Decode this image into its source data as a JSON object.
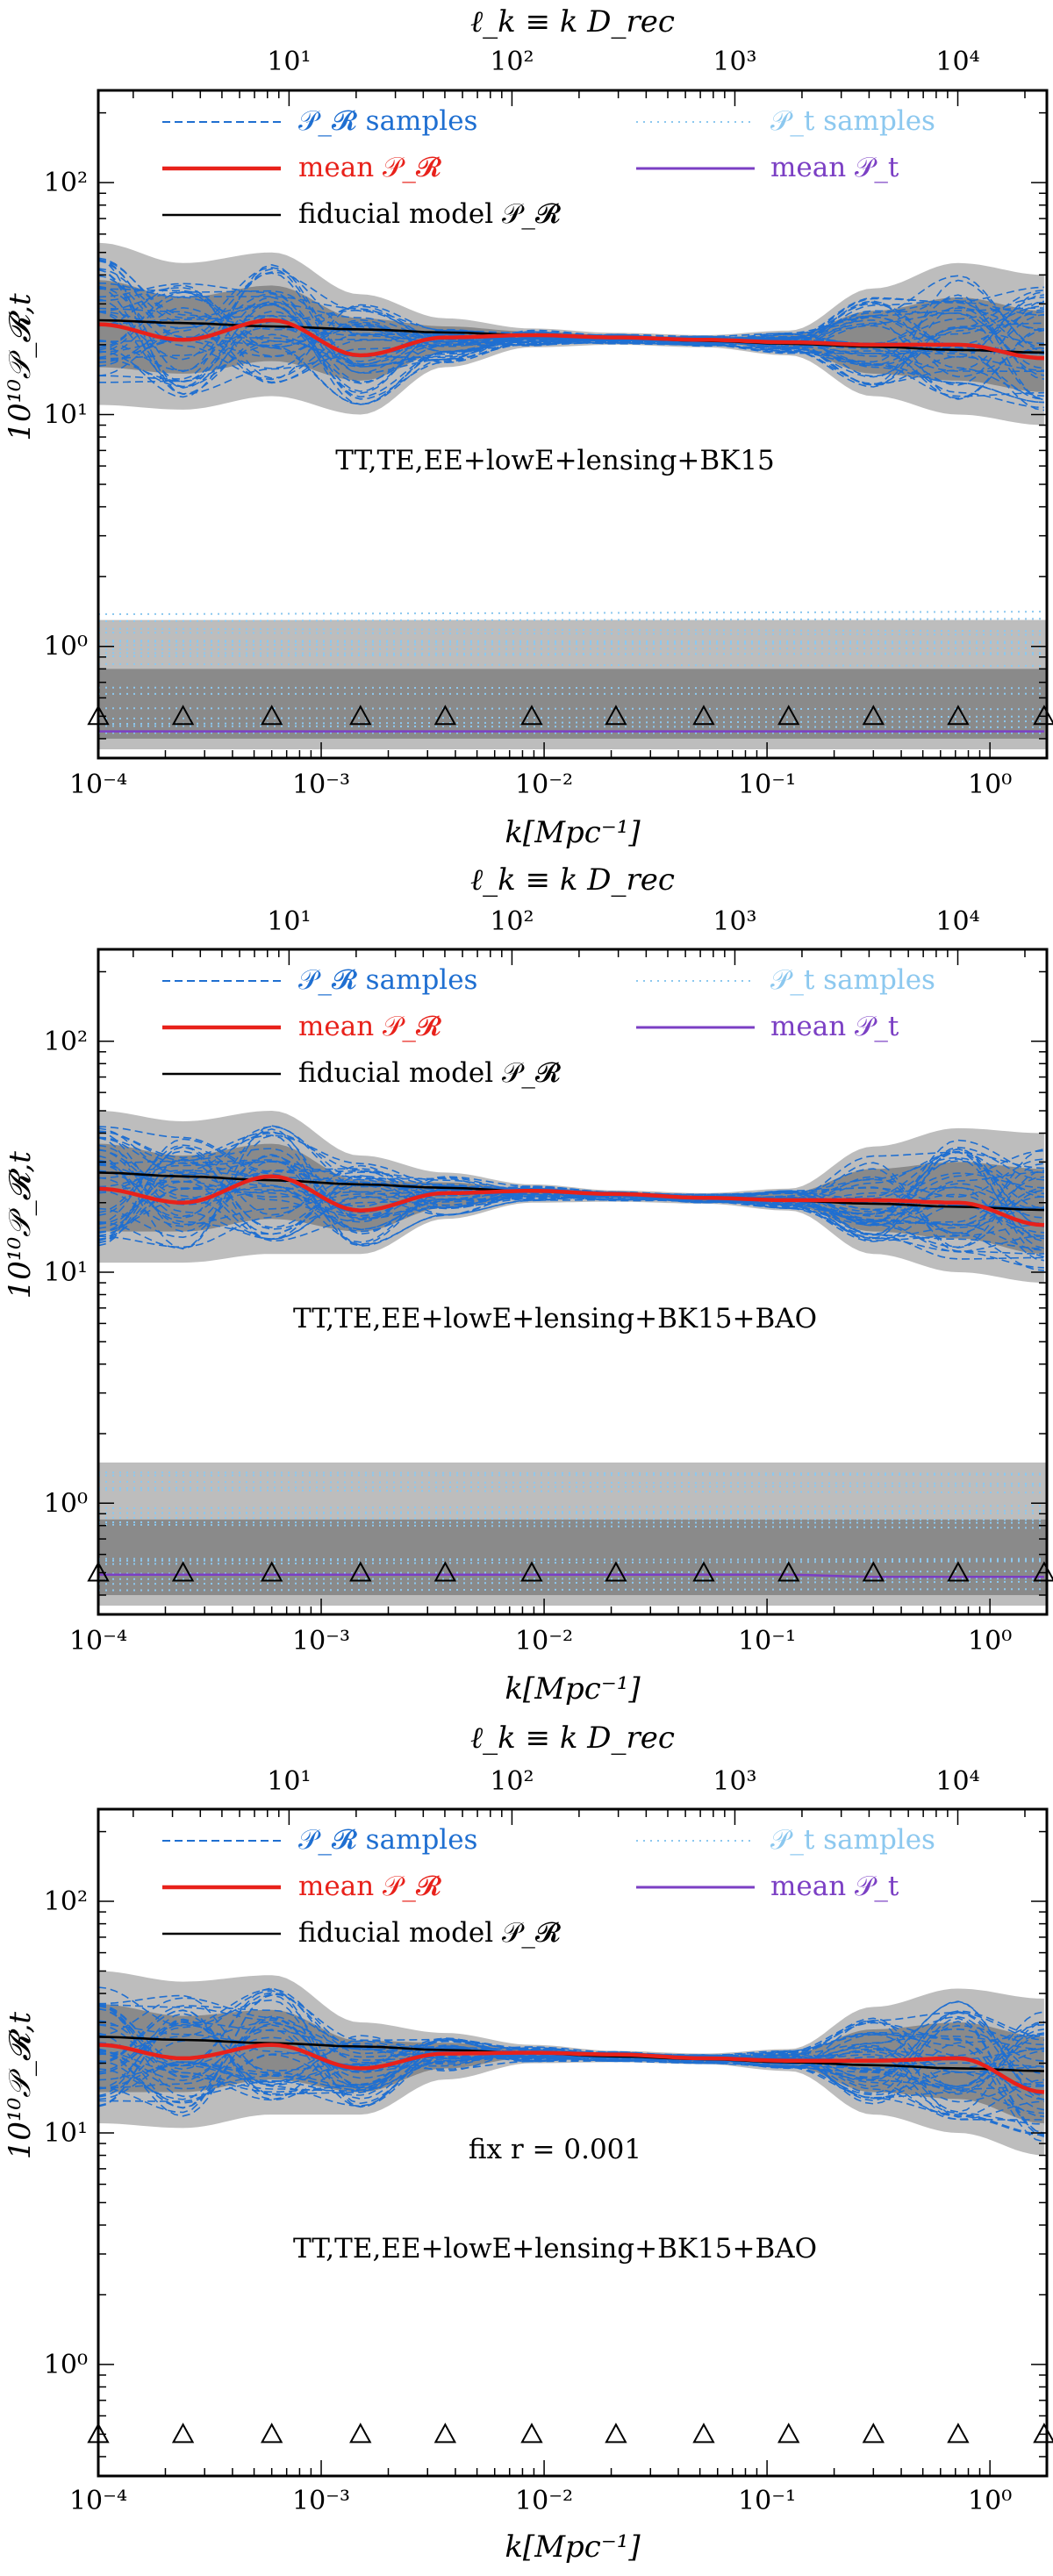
{
  "figure": {
    "top_axis_label": "ℓ_k ≡ k D_rec",
    "bottom_axis_label": "k[Mpc⁻¹]",
    "y_axis_label": "10¹⁰𝒫_𝓡,t"
  },
  "legend": {
    "pr_samples": "𝒫_𝓡 samples",
    "pt_samples": "𝒫_t samples",
    "mean_pr": "mean 𝒫_𝓡",
    "mean_pt": "mean 𝒫_t",
    "fiducial": "fiducial model 𝒫_𝓡"
  },
  "colors": {
    "pr_samples": "#1f6fd1",
    "pt_samples": "#8cc8ef",
    "mean_pr": "#e8211a",
    "mean_pt": "#7b3fc4",
    "fiducial": "#000000",
    "band_outer": "#bdbdbd",
    "band_inner": "#8a8a8a"
  },
  "chart_data": [
    {
      "type": "line",
      "title": "TT,TE,EE+lowE+lensing+BK15",
      "annotation": "",
      "xscale": "log",
      "yscale": "log",
      "xlim": [
        0.0001,
        1.8
      ],
      "ylim": [
        0.33,
        250
      ],
      "xlabel": "k[Mpc⁻¹]",
      "ylabel": "10¹⁰𝒫_𝓡,t",
      "top_xlabel": "ℓ_k ≡ k D_rec",
      "x_ticks": [
        {
          "v": 0.0001,
          "label": "10⁻⁴"
        },
        {
          "v": 0.001,
          "label": "10⁻³"
        },
        {
          "v": 0.01,
          "label": "10⁻²"
        },
        {
          "v": 0.1,
          "label": "10⁻¹"
        },
        {
          "v": 1,
          "label": "10⁰"
        }
      ],
      "y_ticks": [
        {
          "v": 1,
          "label": "10⁰"
        },
        {
          "v": 10,
          "label": "10¹"
        },
        {
          "v": 100,
          "label": "10²"
        }
      ],
      "top_ticks": [
        {
          "v": 10,
          "label": "10¹"
        },
        {
          "v": 100,
          "label": "10²"
        },
        {
          "v": 1000,
          "label": "10³"
        },
        {
          "v": 10000,
          "label": "10⁴"
        }
      ],
      "knots_k": [
        0.0001,
        0.00024,
        0.0006,
        0.0015,
        0.0036,
        0.0088,
        0.021,
        0.052,
        0.125,
        0.3,
        0.72,
        1.75
      ],
      "knot_y": 0.5,
      "series": [
        {
          "name": "mean 𝒫_𝓡",
          "values": [
            24.5,
            21.0,
            25.5,
            18.0,
            21.5,
            22.0,
            21.5,
            21.0,
            20.5,
            20.0,
            20.0,
            17.5
          ]
        },
        {
          "name": "fiducial model 𝒫_𝓡",
          "values": [
            25.5,
            24.8,
            24.0,
            23.3,
            22.6,
            22.0,
            21.4,
            20.8,
            20.2,
            19.6,
            19.0,
            18.5
          ]
        },
        {
          "name": "mean 𝒫_t",
          "values": [
            0.43,
            0.43,
            0.43,
            0.43,
            0.43,
            0.43,
            0.43,
            0.43,
            0.43,
            0.43,
            0.43,
            0.43
          ]
        }
      ],
      "pr_band_outer_lo": [
        11,
        10.5,
        12,
        10,
        16,
        19.5,
        20,
        19.5,
        18,
        12,
        10,
        9
      ],
      "pr_band_outer_hi": [
        55,
        45,
        50,
        33,
        26,
        23.5,
        22.5,
        22,
        23,
        35,
        45,
        40
      ],
      "pr_band_inner_lo": [
        16,
        15,
        17,
        14,
        18.5,
        21,
        20.8,
        20.3,
        19.3,
        15,
        14,
        12.5
      ],
      "pr_band_inner_hi": [
        38,
        32,
        36,
        26,
        24,
        22.8,
        22,
        21.5,
        22,
        28,
        32,
        28
      ],
      "pt_band_outer": [
        0.36,
        1.3
      ],
      "pt_band_inner": [
        0.4,
        0.8
      ],
      "pt_samples_range": [
        0.36,
        1.55
      ]
    },
    {
      "type": "line",
      "title": "TT,TE,EE+lowE+lensing+BK15+BAO",
      "annotation": "",
      "xscale": "log",
      "yscale": "log",
      "xlim": [
        0.0001,
        1.8
      ],
      "ylim": [
        0.33,
        250
      ],
      "xlabel": "k[Mpc⁻¹]",
      "ylabel": "10¹⁰𝒫_𝓡,t",
      "top_xlabel": "ℓ_k ≡ k D_rec",
      "x_ticks": [
        {
          "v": 0.0001,
          "label": "10⁻⁴"
        },
        {
          "v": 0.001,
          "label": "10⁻³"
        },
        {
          "v": 0.01,
          "label": "10⁻²"
        },
        {
          "v": 0.1,
          "label": "10⁻¹"
        },
        {
          "v": 1,
          "label": "10⁰"
        }
      ],
      "y_ticks": [
        {
          "v": 1,
          "label": "10⁰"
        },
        {
          "v": 10,
          "label": "10¹"
        },
        {
          "v": 100,
          "label": "10²"
        }
      ],
      "top_ticks": [
        {
          "v": 10,
          "label": "10¹"
        },
        {
          "v": 100,
          "label": "10²"
        },
        {
          "v": 1000,
          "label": "10³"
        },
        {
          "v": 10000,
          "label": "10⁴"
        }
      ],
      "knots_k": [
        0.0001,
        0.00024,
        0.0006,
        0.0015,
        0.0036,
        0.0088,
        0.021,
        0.052,
        0.125,
        0.3,
        0.72,
        1.75
      ],
      "knot_y": 0.5,
      "series": [
        {
          "name": "mean 𝒫_𝓡",
          "values": [
            23.0,
            20.0,
            26.0,
            18.5,
            22.0,
            22.5,
            21.8,
            21.0,
            20.5,
            20.5,
            20.0,
            16.0
          ]
        },
        {
          "name": "fiducial model 𝒫_𝓡",
          "values": [
            27.0,
            26.0,
            25.0,
            24.0,
            23.2,
            22.4,
            21.7,
            21.0,
            20.4,
            19.8,
            19.2,
            18.6
          ]
        },
        {
          "name": "mean 𝒫_t",
          "values": [
            0.49,
            0.49,
            0.49,
            0.49,
            0.49,
            0.49,
            0.49,
            0.49,
            0.49,
            0.48,
            0.48,
            0.48
          ]
        }
      ],
      "pr_band_outer_lo": [
        11,
        11,
        12,
        12,
        17,
        20,
        20.2,
        19.8,
        18.5,
        12,
        10,
        9
      ],
      "pr_band_outer_hi": [
        50,
        45,
        50,
        32,
        27,
        24,
        22.6,
        22,
        23,
        35,
        42,
        40
      ],
      "pr_band_inner_lo": [
        15,
        15,
        17,
        15,
        19,
        21.2,
        21,
        20.3,
        19.5,
        15,
        14,
        12
      ],
      "pr_band_inner_hi": [
        36,
        32,
        36,
        25,
        24.5,
        23,
        22,
        21.5,
        22,
        28,
        30,
        28
      ],
      "pt_band_outer": [
        0.36,
        1.5
      ],
      "pt_band_inner": [
        0.4,
        0.85
      ],
      "pt_samples_range": [
        0.36,
        1.55
      ]
    },
    {
      "type": "line",
      "title": "TT,TE,EE+lowE+lensing+BK15+BAO",
      "annotation": "fix r = 0.001",
      "xscale": "log",
      "yscale": "log",
      "xlim": [
        0.0001,
        1.8
      ],
      "ylim": [
        0.33,
        250
      ],
      "xlabel": "k[Mpc⁻¹]",
      "ylabel": "10¹⁰𝒫_𝓡,t",
      "top_xlabel": "ℓ_k ≡ k D_rec",
      "x_ticks": [
        {
          "v": 0.0001,
          "label": "10⁻⁴"
        },
        {
          "v": 0.001,
          "label": "10⁻³"
        },
        {
          "v": 0.01,
          "label": "10⁻²"
        },
        {
          "v": 0.1,
          "label": "10⁻¹"
        },
        {
          "v": 1,
          "label": "10⁰"
        }
      ],
      "y_ticks": [
        {
          "v": 1,
          "label": "10⁰"
        },
        {
          "v": 10,
          "label": "10¹"
        },
        {
          "v": 100,
          "label": "10²"
        }
      ],
      "top_ticks": [
        {
          "v": 10,
          "label": "10¹"
        },
        {
          "v": 100,
          "label": "10²"
        },
        {
          "v": 1000,
          "label": "10³"
        },
        {
          "v": 10000,
          "label": "10⁴"
        }
      ],
      "knots_k": [
        0.0001,
        0.00024,
        0.0006,
        0.0015,
        0.0036,
        0.0088,
        0.021,
        0.052,
        0.125,
        0.3,
        0.72,
        1.75
      ],
      "knot_y": 0.5,
      "series": [
        {
          "name": "mean 𝒫_𝓡",
          "values": [
            24.0,
            21.0,
            24.0,
            19.0,
            22.0,
            22.2,
            21.8,
            21.0,
            20.5,
            20.5,
            21.0,
            15.0
          ]
        },
        {
          "name": "fiducial model 𝒫_𝓡",
          "values": [
            26.0,
            25.2,
            24.4,
            23.6,
            22.8,
            22.1,
            21.4,
            20.8,
            20.2,
            19.6,
            19.0,
            18.5
          ]
        }
      ],
      "pr_band_outer_lo": [
        11,
        10.5,
        12,
        12,
        17,
        20,
        20.2,
        19.8,
        18.5,
        12,
        10,
        8
      ],
      "pr_band_outer_hi": [
        50,
        45,
        48,
        30,
        27,
        24,
        22.6,
        22,
        23,
        35,
        42,
        38
      ],
      "pr_band_inner_lo": [
        15,
        15,
        17,
        15,
        19,
        21.2,
        21,
        20.3,
        19.5,
        15,
        14,
        11
      ],
      "pr_band_inner_hi": [
        36,
        32,
        34,
        25,
        24.5,
        23,
        22,
        21.5,
        22,
        28,
        30,
        26
      ],
      "pt_band_outer": null,
      "pt_band_inner": null,
      "pt_samples_range": null
    }
  ]
}
